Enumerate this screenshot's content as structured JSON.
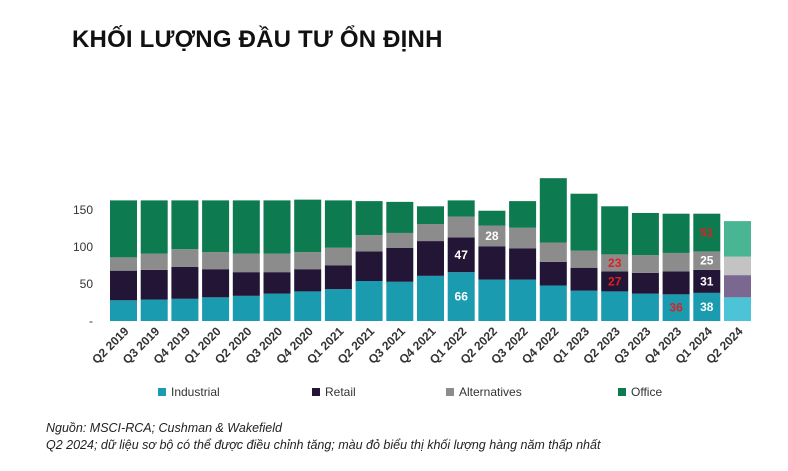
{
  "colors": {
    "industrial": "#1a9bb0",
    "retail": "#221536",
    "alternatives": "#8c8c8c",
    "office": "#0d7a4f",
    "industrial_prelim": "#4cc3d6",
    "retail_prelim": "#7a6890",
    "alternatives_prelim": "#c3c3c3",
    "office_prelim": "#4ab593",
    "low_label": "#e02020"
  },
  "chart_data": {
    "type": "bar",
    "stacked": true,
    "title": "KHỐI LƯỢNG ĐẦU TƯ ỔN ĐỊNH",
    "categories": [
      "Q2 2019",
      "Q3 2019",
      "Q4 2019",
      "Q1 2020",
      "Q2 2020",
      "Q3 2020",
      "Q4 2020",
      "Q1 2021",
      "Q2 2021",
      "Q3 2021",
      "Q4 2021",
      "Q1 2022",
      "Q2 2022",
      "Q3 2022",
      "Q4 2022",
      "Q1 2023",
      "Q2 2023",
      "Q3 2023",
      "Q4 2023",
      "Q1 2024",
      "Q2 2024"
    ],
    "yticks": [
      "-",
      "50",
      "100",
      "150"
    ],
    "ylim": [
      0,
      190
    ],
    "series": [
      {
        "name": "Industrial",
        "values": [
          28,
          29,
          30,
          32,
          34,
          37,
          40,
          43,
          54,
          53,
          61,
          66,
          56,
          56,
          48,
          41,
          40,
          37,
          36,
          38,
          32
        ]
      },
      {
        "name": "Retail",
        "values": [
          40,
          40,
          43,
          38,
          32,
          29,
          30,
          32,
          40,
          46,
          47,
          47,
          45,
          42,
          32,
          31,
          27,
          28,
          31,
          31,
          30
        ]
      },
      {
        "name": "Alternatives",
        "values": [
          18,
          22,
          24,
          23,
          25,
          25,
          23,
          24,
          22,
          20,
          23,
          28,
          28,
          28,
          26,
          23,
          23,
          24,
          25,
          25,
          25
        ]
      },
      {
        "name": "Office",
        "values": [
          77,
          72,
          66,
          70,
          72,
          72,
          71,
          64,
          46,
          42,
          24,
          22,
          20,
          36,
          87,
          77,
          65,
          57,
          53,
          51,
          48
        ]
      }
    ],
    "data_labels": [
      {
        "category": "Q1 2022",
        "series": "Industrial",
        "text": "66",
        "color": "white"
      },
      {
        "category": "Q1 2022",
        "series": "Retail",
        "text": "47",
        "color": "white"
      },
      {
        "category": "Q2 2022",
        "series": "Alternatives",
        "text": "28",
        "color": "white"
      },
      {
        "category": "Q2 2023",
        "series": "Retail",
        "text": "27",
        "color": "red"
      },
      {
        "category": "Q2 2023",
        "series": "Alternatives",
        "text": "23",
        "color": "red"
      },
      {
        "category": "Q4 2023",
        "series": "Industrial",
        "text": "36",
        "color": "red"
      },
      {
        "category": "Q1 2024",
        "series": "Industrial",
        "text": "38",
        "color": "white"
      },
      {
        "category": "Q1 2024",
        "series": "Retail",
        "text": "31",
        "color": "white"
      },
      {
        "category": "Q1 2024",
        "series": "Alternatives",
        "text": "25",
        "color": "white"
      },
      {
        "category": "Q1 2024",
        "series": "Office",
        "text": "51",
        "color": "red"
      }
    ],
    "preliminary_category": "Q2 2024",
    "legend_position": "bottom"
  },
  "legend": [
    {
      "label": "Industrial",
      "color_key": "industrial"
    },
    {
      "label": "Retail",
      "color_key": "retail"
    },
    {
      "label": "Alternatives",
      "color_key": "alternatives"
    },
    {
      "label": "Office",
      "color_key": "office"
    }
  ],
  "notes": {
    "source": "Nguồn: MSCI-RCA; Cushman & Wakefield",
    "footnote": "Q2 2024; dữ liệu sơ bộ có thể được điều chỉnh tăng; màu đỏ biểu thị khối lượng hàng năm thấp nhất"
  }
}
